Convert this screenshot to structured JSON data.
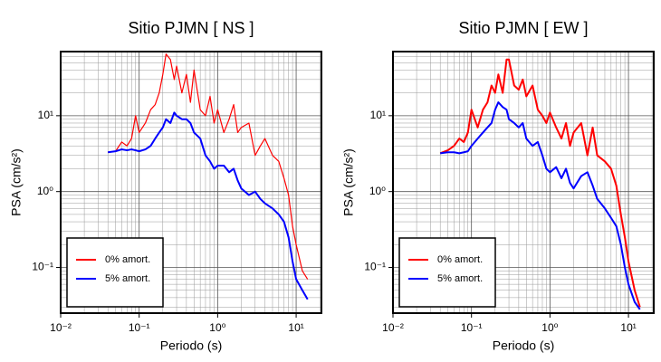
{
  "chart_data": [
    {
      "type": "line",
      "title": "Sitio PJMN [ NS ]",
      "xlabel": "Periodo (s)",
      "ylabel": "PSA (cm/s²)",
      "log_x": true,
      "log_y": true,
      "grid": true,
      "legend": "lower left",
      "xlim": [
        0.01,
        21
      ],
      "ylim": [
        0.025,
        70
      ],
      "xticks": [
        {
          "value": 0.01,
          "label": "10⁻²"
        },
        {
          "value": 0.1,
          "label": "10⁻¹"
        },
        {
          "value": 1,
          "label": "10⁰"
        },
        {
          "value": 10,
          "label": "10¹"
        }
      ],
      "yticks": [
        {
          "value": 0.1,
          "label": "10⁻¹"
        },
        {
          "value": 1,
          "label": "10⁰"
        },
        {
          "value": 10,
          "label": "10¹"
        }
      ],
      "x": [
        0.04,
        0.05,
        0.06,
        0.07,
        0.08,
        0.09,
        0.1,
        0.12,
        0.14,
        0.16,
        0.18,
        0.2,
        0.22,
        0.25,
        0.28,
        0.3,
        0.35,
        0.4,
        0.45,
        0.5,
        0.6,
        0.7,
        0.8,
        0.9,
        1.0,
        1.2,
        1.4,
        1.6,
        1.8,
        2.0,
        2.5,
        3.0,
        3.5,
        4.0,
        5.0,
        6.0,
        7.0,
        8.0,
        9.0,
        10,
        12,
        14
      ],
      "series": [
        {
          "name": "0% amort.",
          "color": "#ff0000",
          "line_width": 1.2,
          "values": [
            3.3,
            3.4,
            4.5,
            4,
            5,
            10,
            6,
            8,
            12,
            14,
            20,
            35,
            65,
            55,
            30,
            45,
            20,
            35,
            15,
            40,
            12,
            10,
            18,
            8,
            12,
            6,
            9,
            14,
            6,
            7,
            8,
            3,
            4,
            5,
            3,
            2.5,
            1.5,
            0.9,
            0.35,
            0.2,
            0.09,
            0.07
          ]
        },
        {
          "name": "5% amort.",
          "color": "#0000ff",
          "line_width": 2,
          "values": [
            3.3,
            3.4,
            3.6,
            3.5,
            3.6,
            3.5,
            3.4,
            3.6,
            4,
            5,
            6,
            7,
            9,
            8,
            11,
            10,
            9,
            9,
            8,
            6,
            5,
            3,
            2.5,
            2,
            2.2,
            2.2,
            1.8,
            2,
            1.4,
            1.1,
            0.9,
            1,
            0.8,
            0.7,
            0.6,
            0.5,
            0.4,
            0.25,
            0.12,
            0.07,
            0.05,
            0.038
          ]
        }
      ]
    },
    {
      "type": "line",
      "title": "Sitio PJMN [ EW ]",
      "xlabel": "Periodo (s)",
      "ylabel": "PSA (cm/s²)",
      "log_x": true,
      "log_y": true,
      "grid": true,
      "legend": "lower left",
      "xlim": [
        0.01,
        21
      ],
      "ylim": [
        0.025,
        70
      ],
      "xticks": [
        {
          "value": 0.01,
          "label": "10⁻²"
        },
        {
          "value": 0.1,
          "label": "10⁻¹"
        },
        {
          "value": 1,
          "label": "10⁰"
        },
        {
          "value": 10,
          "label": "10¹"
        }
      ],
      "yticks": [
        {
          "value": 0.1,
          "label": "10⁻¹"
        },
        {
          "value": 1,
          "label": "10⁰"
        },
        {
          "value": 10,
          "label": "10¹"
        }
      ],
      "x": [
        0.04,
        0.05,
        0.06,
        0.07,
        0.08,
        0.09,
        0.1,
        0.12,
        0.14,
        0.16,
        0.18,
        0.2,
        0.22,
        0.25,
        0.28,
        0.3,
        0.35,
        0.4,
        0.45,
        0.5,
        0.6,
        0.7,
        0.8,
        0.9,
        1.0,
        1.2,
        1.4,
        1.6,
        1.8,
        2.0,
        2.5,
        3.0,
        3.5,
        4.0,
        5.0,
        6.0,
        7.0,
        8.0,
        9.0,
        10,
        12,
        14
      ],
      "series": [
        {
          "name": "0% amort.",
          "color": "#ff0000",
          "line_width": 2,
          "values": [
            3.2,
            3.5,
            4,
            5,
            4.5,
            6,
            12,
            7,
            12,
            15,
            25,
            20,
            35,
            20,
            55,
            55,
            25,
            22,
            30,
            18,
            25,
            12,
            10,
            8,
            11,
            7,
            5,
            8,
            4,
            6,
            8,
            3,
            7,
            3,
            2.5,
            2,
            1.2,
            0.5,
            0.25,
            0.12,
            0.05,
            0.03
          ]
        },
        {
          "name": "5% amort.",
          "color": "#0000ff",
          "line_width": 2,
          "values": [
            3.2,
            3.3,
            3.3,
            3.2,
            3.3,
            3.4,
            4,
            5,
            6,
            7,
            8,
            12,
            15,
            13,
            12,
            9,
            8,
            7,
            8,
            5,
            4,
            4.5,
            3,
            2,
            1.8,
            2.1,
            1.5,
            2,
            1.3,
            1.1,
            1.6,
            1.8,
            1.2,
            0.8,
            0.6,
            0.45,
            0.35,
            0.2,
            0.1,
            0.06,
            0.035,
            0.028
          ]
        }
      ]
    }
  ]
}
